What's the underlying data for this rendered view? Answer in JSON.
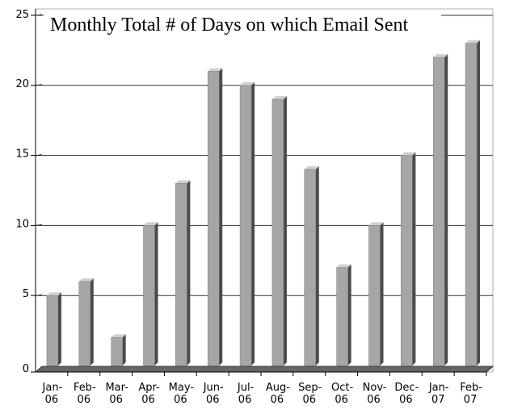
{
  "chart_data": {
    "type": "bar",
    "title": "Monthly Total # of Days on which Email Sent",
    "xlabel": "",
    "ylabel": "",
    "ylim": [
      0,
      25
    ],
    "yticks": [
      "0",
      "5",
      "10",
      "15",
      "20",
      "25"
    ],
    "grid": true,
    "categories": [
      [
        "Jan-",
        "06"
      ],
      [
        "Feb-",
        "06"
      ],
      [
        "Mar-",
        "06"
      ],
      [
        "Apr-",
        "06"
      ],
      [
        "May-",
        "06"
      ],
      [
        "Jun-",
        "06"
      ],
      [
        "Jul-",
        "06"
      ],
      [
        "Aug-",
        "06"
      ],
      [
        "Sep-",
        "06"
      ],
      [
        "Oct-",
        "06"
      ],
      [
        "Nov-",
        "06"
      ],
      [
        "Dec-",
        "06"
      ],
      [
        "Jan-",
        "07"
      ],
      [
        "Feb-",
        "07"
      ]
    ],
    "values": [
      5,
      6,
      2,
      10,
      13,
      21,
      20,
      19,
      14,
      7,
      10,
      15,
      22,
      23
    ],
    "colors": {
      "bar_front": "#a6a6a6",
      "bar_side": "#4a4a4a",
      "bar_top": "#d0d0d0",
      "floor": "#666666",
      "grid": "#333333"
    }
  }
}
